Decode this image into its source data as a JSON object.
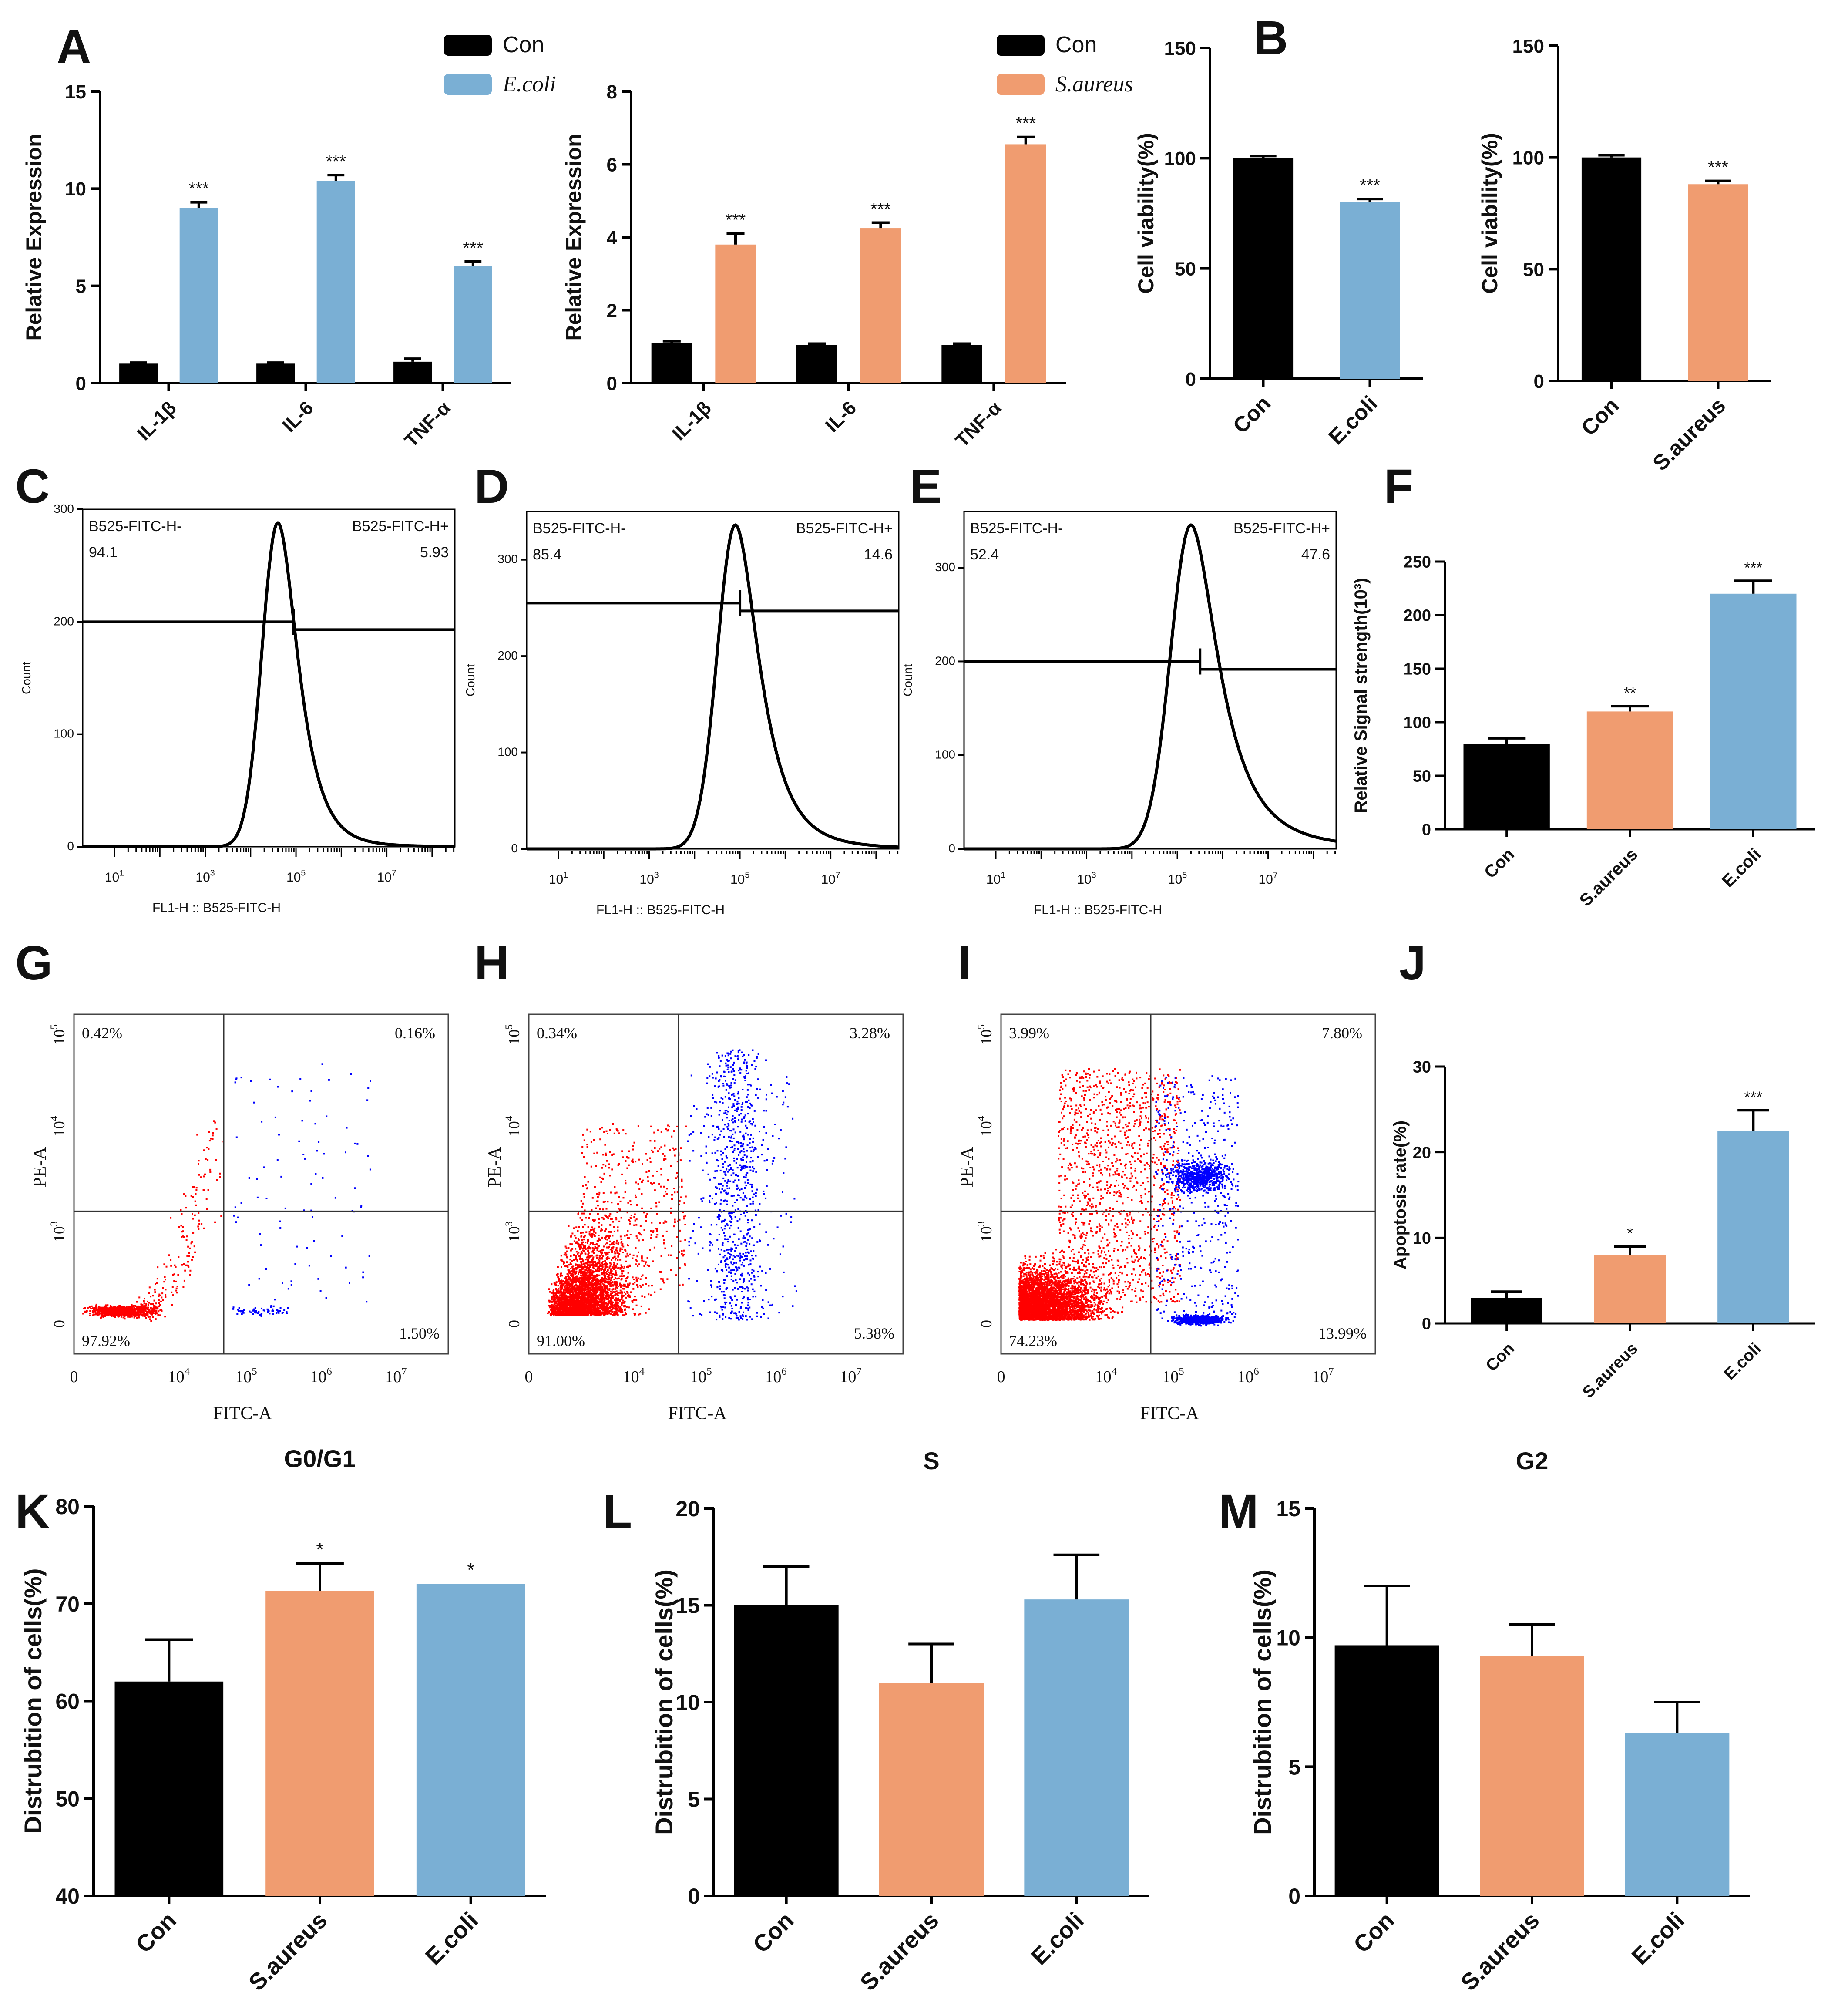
{
  "colors": {
    "con": "#000000",
    "ecoli": "#7aafd4",
    "saureus": "#f09c70",
    "red": "#ff0000",
    "blue": "#0000ff"
  },
  "panel_labels": [
    "A",
    "B",
    "C",
    "D",
    "E",
    "F",
    "G",
    "H",
    "I",
    "J",
    "K",
    "L",
    "M"
  ],
  "chart_data": [
    {
      "id": "A1",
      "type": "bar",
      "ylabel": "Relative Expression",
      "categories": [
        "IL-1β",
        "IL-6",
        "TNF-α"
      ],
      "ylim": [
        0,
        15
      ],
      "yticks": [
        0,
        5,
        10,
        15
      ],
      "series": [
        {
          "name": "Con",
          "color": "con",
          "values": [
            1,
            1,
            1.1
          ],
          "err": [
            0.05,
            0.05,
            0.15
          ]
        },
        {
          "name": "E.coli",
          "color": "ecoli",
          "values": [
            9.0,
            10.4,
            6.0
          ],
          "err": [
            0.3,
            0.3,
            0.25
          ]
        }
      ],
      "sig": [
        "***",
        "***",
        "***"
      ]
    },
    {
      "id": "A2",
      "type": "bar",
      "ylabel": "Relative Expression",
      "categories": [
        "IL-1β",
        "IL-6",
        "TNF-α"
      ],
      "ylim": [
        0,
        8
      ],
      "yticks": [
        0,
        2,
        4,
        6,
        8
      ],
      "series": [
        {
          "name": "Con",
          "color": "con",
          "values": [
            1.1,
            1.05,
            1.05
          ],
          "err": [
            0.05,
            0.03,
            0.03
          ]
        },
        {
          "name": "S.aureus",
          "color": "saureus",
          "values": [
            3.8,
            4.25,
            6.55
          ],
          "err": [
            0.3,
            0.15,
            0.2
          ]
        }
      ],
      "sig": [
        "***",
        "***",
        "***"
      ]
    },
    {
      "id": "B1",
      "type": "bar",
      "ylabel": "Cell viability(%)",
      "categories": [
        "Con",
        "E.coli"
      ],
      "ylim": [
        0,
        150
      ],
      "yticks": [
        0,
        50,
        100,
        150
      ],
      "values": [
        100,
        80
      ],
      "err": [
        1,
        1.5
      ],
      "colors": [
        "con",
        "ecoli"
      ],
      "sig": [
        "",
        "***"
      ]
    },
    {
      "id": "B2",
      "type": "bar",
      "ylabel": "Cell viability(%)",
      "categories": [
        "Con",
        "S.aureus"
      ],
      "ylim": [
        0,
        150
      ],
      "yticks": [
        0,
        50,
        100,
        150
      ],
      "values": [
        100,
        88
      ],
      "err": [
        1,
        1.5
      ],
      "colors": [
        "con",
        "saureus"
      ],
      "sig": [
        "",
        "***"
      ]
    },
    {
      "id": "C",
      "type": "histogram",
      "xlabel": "FL1-H :: B525-FITC-H",
      "ylabel": "Count",
      "ymax": 300,
      "yticks": [
        0,
        100,
        200,
        300
      ],
      "xticks": [
        "10^1",
        "10^3",
        "10^5",
        "10^7"
      ],
      "peak": 4.6,
      "width": 0.35,
      "gate_y": 200,
      "gates": [
        {
          "label": "B525-FITC-H-",
          "value": "94.1"
        },
        {
          "label": "B525-FITC-H+",
          "value": "5.93"
        }
      ]
    },
    {
      "id": "D",
      "type": "histogram",
      "xlabel": "FL1-H :: B525-FITC-H",
      "ylabel": "Count",
      "ymax": 350,
      "yticks": [
        0,
        100,
        200,
        300
      ],
      "xticks": [
        "10^1",
        "10^3",
        "10^5",
        "10^7"
      ],
      "peak": 4.9,
      "width": 0.4,
      "gate_y": 255,
      "gates": [
        {
          "label": "B525-FITC-H-",
          "value": "85.4"
        },
        {
          "label": "B525-FITC-H+",
          "value": "14.6"
        }
      ]
    },
    {
      "id": "E",
      "type": "histogram",
      "xlabel": "FL1-H :: B525-FITC-H",
      "ylabel": "Count",
      "ymax": 360,
      "yticks": [
        0,
        100,
        200,
        300
      ],
      "xticks": [
        "10^1",
        "10^3",
        "10^5",
        "10^7"
      ],
      "peak": 5.3,
      "width": 0.45,
      "gate_y": 200,
      "gates": [
        {
          "label": "B525-FITC-H-",
          "value": "52.4"
        },
        {
          "label": "B525-FITC-H+",
          "value": "47.6"
        }
      ]
    },
    {
      "id": "F",
      "type": "bar",
      "ylabel": "Relative Signal strength(10³)",
      "categories": [
        "Con",
        "S.aureus",
        "E.coli"
      ],
      "ylim": [
        0,
        250
      ],
      "yticks": [
        0,
        50,
        100,
        150,
        200,
        250
      ],
      "values": [
        80,
        110,
        220
      ],
      "err": [
        5,
        5,
        12
      ],
      "colors": [
        "con",
        "saureus",
        "ecoli"
      ],
      "sig": [
        "",
        "**",
        "***"
      ]
    },
    {
      "id": "G",
      "type": "scatter",
      "xlabel": "FITC-A",
      "ylabel": "PE-A",
      "quadrants": [
        "0.42%",
        "0.16%",
        "97.92%",
        "1.50%"
      ],
      "density": 1
    },
    {
      "id": "H",
      "type": "scatter",
      "xlabel": "FITC-A",
      "ylabel": "PE-A",
      "quadrants": [
        "0.34%",
        "3.28%",
        "91.00%",
        "5.38%"
      ],
      "density": 2
    },
    {
      "id": "I",
      "type": "scatter",
      "xlabel": "FITC-A",
      "ylabel": "PE-A",
      "quadrants": [
        "3.99%",
        "7.80%",
        "74.23%",
        "13.99%"
      ],
      "density": 3
    },
    {
      "id": "J",
      "type": "bar",
      "ylabel": "Apoptosis rate(%)",
      "categories": [
        "Con",
        "S.aureus",
        "E.coli"
      ],
      "ylim": [
        0,
        30
      ],
      "yticks": [
        0,
        10,
        20,
        30
      ],
      "values": [
        3,
        8,
        22.5
      ],
      "err": [
        0.7,
        1,
        2.4
      ],
      "colors": [
        "con",
        "saureus",
        "ecoli"
      ],
      "sig": [
        "",
        "*",
        "***"
      ]
    },
    {
      "id": "K",
      "type": "bar",
      "title": "G0/G1",
      "ylabel": "Distrubition of cells(%)",
      "categories": [
        "Con",
        "S.aureus",
        "E.coli"
      ],
      "ylim": [
        40,
        80
      ],
      "yticks": [
        40,
        50,
        60,
        70,
        80
      ],
      "values": [
        62,
        71.3,
        72
      ],
      "err": [
        4.3,
        2.8,
        0
      ],
      "colors": [
        "con",
        "saureus",
        "ecoli"
      ],
      "sig": [
        "",
        "*",
        "*"
      ]
    },
    {
      "id": "L",
      "type": "bar",
      "title": "S",
      "ylabel": "Distrubition of cells(%)",
      "categories": [
        "Con",
        "S.aureus",
        "E.coli"
      ],
      "ylim": [
        0,
        20
      ],
      "yticks": [
        0,
        5,
        10,
        15,
        20
      ],
      "values": [
        15,
        11,
        15.3
      ],
      "err": [
        2,
        2,
        2.3
      ],
      "colors": [
        "con",
        "saureus",
        "ecoli"
      ],
      "sig": [
        "",
        "",
        ""
      ]
    },
    {
      "id": "M",
      "type": "bar",
      "title": "G2",
      "ylabel": "Distrubition of cells(%)",
      "categories": [
        "Con",
        "S.aureus",
        "E.coli"
      ],
      "ylim": [
        0,
        15
      ],
      "yticks": [
        0,
        5,
        10,
        15
      ],
      "values": [
        9.7,
        9.3,
        6.3
      ],
      "err": [
        2.3,
        1.2,
        1.2
      ],
      "colors": [
        "con",
        "saureus",
        "ecoli"
      ],
      "sig": [
        "",
        "",
        ""
      ]
    }
  ]
}
